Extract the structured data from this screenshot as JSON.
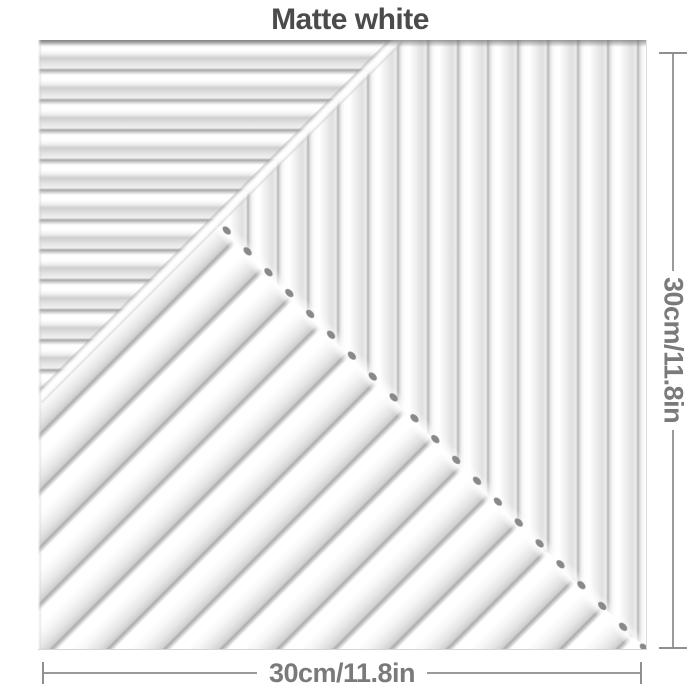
{
  "title": "Matte white",
  "panel": {
    "name": "matte-white-3d-wall-panel",
    "regions": {
      "top_left": "horizontal-ribs",
      "top_right": "vertical-ribs",
      "bottom": "diagonal-ribs"
    }
  },
  "dimensions": {
    "height_label": "30cm/11.8in",
    "width_label": "30cm/11.8in"
  },
  "colors": {
    "title_text": "#4b4b4b",
    "dimension_text": "#7a7a7a",
    "dimension_line": "#9a9a9a",
    "panel_base": "#f2f2f2",
    "rib_highlight": "#ffffff",
    "rib_shadow": "#c9c9c9",
    "rib_end_cap_shadow": "#898989"
  }
}
